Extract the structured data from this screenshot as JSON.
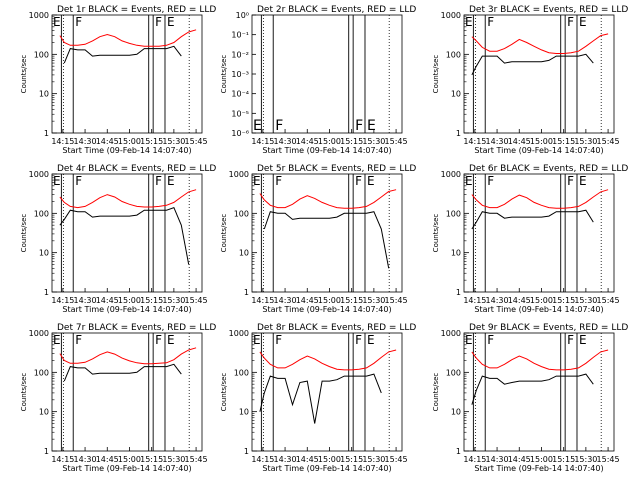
{
  "figure": {
    "background": "#ffffff",
    "axis_color": "#000000",
    "events_color": "#000000",
    "lld_color": "#ff0000"
  },
  "common": {
    "ylabel": "Counts/sec",
    "xlabel": "Start Time (09-Feb-14 14:07:40)",
    "xticks": [
      "14:15",
      "14:30",
      "14:45",
      "15:00",
      "15:15",
      "15:30",
      "15:45"
    ],
    "yticks_log": [
      "1",
      "10",
      "100",
      "1000"
    ],
    "yticks_panel2": [
      "10⁰",
      "10⁻¹",
      "10⁻²",
      "10⁻³",
      "10⁻⁴",
      "10⁻⁵",
      "10⁻⁶"
    ],
    "marker_E": "E",
    "marker_F": "F"
  },
  "chart_data": [
    {
      "type": "line",
      "title": "Det 1r BLACK = Events, RED = LLD",
      "xlabel": "Start Time (09-Feb-14 14:07:40)",
      "ylabel": "Counts/sec",
      "yscale": "log",
      "ylim": [
        1,
        1000
      ],
      "xlim": [
        "14:07:40",
        "15:49"
      ],
      "x": [
        "14:13",
        "14:16",
        "14:20",
        "14:25",
        "14:30",
        "14:35",
        "14:40",
        "14:45",
        "14:50",
        "14:55",
        "15:00",
        "15:05",
        "15:10",
        "15:15",
        "15:20",
        "15:25",
        "15:30",
        "15:35",
        "15:40",
        "15:45"
      ],
      "series": [
        {
          "name": "RED = LLD",
          "color": "#ff0000",
          "values": [
            300,
            200,
            170,
            170,
            180,
            220,
            280,
            320,
            280,
            220,
            190,
            170,
            160,
            160,
            160,
            170,
            200,
            280,
            370,
            420
          ]
        },
        {
          "name": "BLACK = Events",
          "color": "#000000",
          "values": [
            null,
            60,
            140,
            130,
            130,
            90,
            95,
            95,
            95,
            95,
            95,
            100,
            140,
            140,
            140,
            140,
            160,
            90,
            null,
            null
          ]
        }
      ]
    },
    {
      "type": "line",
      "title": "Det 2r BLACK = Events, RED = LLD",
      "xlabel": "Start Time (09-Feb-14 14:07:40)",
      "ylabel": "Counts/sec",
      "yscale": "log",
      "ylim": [
        1e-06,
        1
      ],
      "series": []
    },
    {
      "type": "line",
      "title": "Det 3r BLACK = Events, RED = LLD",
      "xlabel": "Start Time (09-Feb-14 14:07:40)",
      "ylabel": "Counts/sec",
      "yscale": "log",
      "ylim": [
        1,
        1000
      ],
      "x": [
        "14:13",
        "14:16",
        "14:20",
        "14:25",
        "14:30",
        "14:35",
        "14:40",
        "14:45",
        "14:50",
        "14:55",
        "15:00",
        "15:05",
        "15:10",
        "15:15",
        "15:20",
        "15:25",
        "15:30",
        "15:35",
        "15:40",
        "15:45"
      ],
      "series": [
        {
          "name": "RED = LLD",
          "color": "#ff0000",
          "values": [
            280,
            220,
            150,
            120,
            120,
            140,
            180,
            240,
            200,
            160,
            130,
            110,
            105,
            105,
            110,
            120,
            160,
            220,
            300,
            330
          ]
        },
        {
          "name": "BLACK = Events",
          "color": "#000000",
          "values": [
            30,
            50,
            90,
            90,
            90,
            60,
            65,
            65,
            65,
            65,
            65,
            70,
            90,
            90,
            90,
            90,
            100,
            60,
            null,
            null
          ]
        }
      ]
    },
    {
      "type": "line",
      "title": "Det 4r BLACK = Events, RED = LLD",
      "xlabel": "Start Time (09-Feb-14 14:07:40)",
      "ylabel": "Counts/sec",
      "yscale": "log",
      "ylim": [
        1,
        1000
      ],
      "x": [
        "14:13",
        "14:16",
        "14:20",
        "14:25",
        "14:30",
        "14:35",
        "14:40",
        "14:45",
        "14:50",
        "14:55",
        "15:00",
        "15:05",
        "15:10",
        "15:15",
        "15:20",
        "15:25",
        "15:30",
        "15:35",
        "15:40",
        "15:45"
      ],
      "series": [
        {
          "name": "RED = LLD",
          "color": "#ff0000",
          "values": [
            260,
            190,
            150,
            140,
            150,
            190,
            250,
            300,
            260,
            200,
            170,
            150,
            145,
            145,
            150,
            160,
            190,
            260,
            350,
            400
          ]
        },
        {
          "name": "BLACK = Events",
          "color": "#000000",
          "values": [
            50,
            70,
            120,
            110,
            110,
            80,
            85,
            85,
            85,
            85,
            85,
            90,
            120,
            120,
            120,
            120,
            140,
            50,
            5,
            null
          ]
        }
      ]
    },
    {
      "type": "line",
      "title": "Det 5r BLACK = Events, RED = LLD",
      "xlabel": "Start Time (09-Feb-14 14:07:40)",
      "ylabel": "Counts/sec",
      "yscale": "log",
      "ylim": [
        1,
        1000
      ],
      "x": [
        "14:13",
        "14:16",
        "14:20",
        "14:25",
        "14:30",
        "14:35",
        "14:40",
        "14:45",
        "14:50",
        "14:55",
        "15:00",
        "15:05",
        "15:10",
        "15:15",
        "15:20",
        "15:25",
        "15:30",
        "15:35",
        "15:40",
        "15:45"
      ],
      "series": [
        {
          "name": "RED = LLD",
          "color": "#ff0000",
          "values": [
            320,
            220,
            160,
            140,
            140,
            170,
            230,
            280,
            240,
            190,
            160,
            140,
            135,
            135,
            140,
            150,
            190,
            260,
            360,
            400
          ]
        },
        {
          "name": "BLACK = Events",
          "color": "#000000",
          "values": [
            null,
            40,
            110,
            100,
            100,
            70,
            75,
            75,
            75,
            75,
            75,
            80,
            100,
            100,
            100,
            100,
            110,
            40,
            4,
            null
          ]
        }
      ]
    },
    {
      "type": "line",
      "title": "Det 6r BLACK = Events, RED = LLD",
      "xlabel": "Start Time (09-Feb-14 14:07:40)",
      "ylabel": "Counts/sec",
      "yscale": "log",
      "ylim": [
        1,
        1000
      ],
      "x": [
        "14:13",
        "14:16",
        "14:20",
        "14:25",
        "14:30",
        "14:35",
        "14:40",
        "14:45",
        "14:50",
        "14:55",
        "15:00",
        "15:05",
        "15:10",
        "15:15",
        "15:20",
        "15:25",
        "15:30",
        "15:35",
        "15:40",
        "15:45"
      ],
      "series": [
        {
          "name": "RED = LLD",
          "color": "#ff0000",
          "values": [
            300,
            220,
            160,
            140,
            140,
            170,
            230,
            290,
            250,
            190,
            160,
            140,
            135,
            135,
            140,
            150,
            190,
            260,
            350,
            400
          ]
        },
        {
          "name": "BLACK = Events",
          "color": "#000000",
          "values": [
            40,
            60,
            110,
            100,
            100,
            75,
            80,
            80,
            80,
            80,
            80,
            85,
            110,
            110,
            110,
            110,
            120,
            60,
            null,
            null
          ]
        }
      ]
    },
    {
      "type": "line",
      "title": "Det 7r BLACK = Events, RED = LLD",
      "xlabel": "Start Time (09-Feb-14 14:07:40)",
      "ylabel": "Counts/sec",
      "yscale": "log",
      "ylim": [
        1,
        1000
      ],
      "x": [
        "14:13",
        "14:16",
        "14:20",
        "14:25",
        "14:30",
        "14:35",
        "14:40",
        "14:45",
        "14:50",
        "14:55",
        "15:00",
        "15:05",
        "15:10",
        "15:15",
        "15:20",
        "15:25",
        "15:30",
        "15:35",
        "15:40",
        "15:45"
      ],
      "series": [
        {
          "name": "RED = LLD",
          "color": "#ff0000",
          "values": [
            300,
            200,
            170,
            170,
            180,
            220,
            280,
            330,
            290,
            230,
            195,
            175,
            165,
            165,
            170,
            175,
            210,
            290,
            370,
            420
          ]
        },
        {
          "name": "BLACK = Events",
          "color": "#000000",
          "values": [
            null,
            60,
            140,
            130,
            130,
            90,
            95,
            95,
            95,
            95,
            95,
            100,
            140,
            140,
            140,
            140,
            160,
            90,
            null,
            null
          ]
        }
      ]
    },
    {
      "type": "line",
      "title": "Det 8r BLACK = Events, RED = LLD",
      "xlabel": "Start Time (09-Feb-14 14:07:40)",
      "ylabel": "Counts/sec",
      "yscale": "log",
      "ylim": [
        1,
        1000
      ],
      "x": [
        "14:13",
        "14:16",
        "14:20",
        "14:25",
        "14:30",
        "14:35",
        "14:40",
        "14:45",
        "14:50",
        "14:55",
        "15:00",
        "15:05",
        "15:10",
        "15:15",
        "15:20",
        "15:25",
        "15:30",
        "15:35",
        "15:40",
        "15:45"
      ],
      "series": [
        {
          "name": "RED = LLD",
          "color": "#ff0000",
          "values": [
            330,
            230,
            160,
            130,
            130,
            160,
            210,
            260,
            220,
            170,
            140,
            120,
            115,
            115,
            120,
            130,
            170,
            240,
            330,
            370
          ]
        },
        {
          "name": "BLACK = Events",
          "color": "#000000",
          "values": [
            10,
            30,
            80,
            70,
            70,
            15,
            55,
            60,
            5,
            60,
            60,
            65,
            80,
            80,
            80,
            80,
            90,
            30,
            null,
            null
          ]
        }
      ]
    },
    {
      "type": "line",
      "title": "Det 9r BLACK = Events, RED = LLD",
      "xlabel": "Start Time (09-Feb-14 14:07:40)",
      "ylabel": "Counts/sec",
      "yscale": "log",
      "ylim": [
        1,
        1000
      ],
      "x": [
        "14:13",
        "14:16",
        "14:20",
        "14:25",
        "14:30",
        "14:35",
        "14:40",
        "14:45",
        "14:50",
        "14:55",
        "15:00",
        "15:05",
        "15:10",
        "15:15",
        "15:20",
        "15:25",
        "15:30",
        "15:35",
        "15:40",
        "15:45"
      ],
      "series": [
        {
          "name": "RED = LLD",
          "color": "#ff0000",
          "values": [
            330,
            230,
            160,
            130,
            130,
            160,
            210,
            260,
            220,
            170,
            140,
            120,
            115,
            115,
            120,
            130,
            170,
            240,
            330,
            370
          ]
        },
        {
          "name": "BLACK = Events",
          "color": "#000000",
          "values": [
            15,
            35,
            80,
            70,
            70,
            50,
            55,
            60,
            60,
            60,
            60,
            65,
            80,
            80,
            80,
            80,
            90,
            50,
            null,
            null
          ]
        }
      ]
    }
  ]
}
